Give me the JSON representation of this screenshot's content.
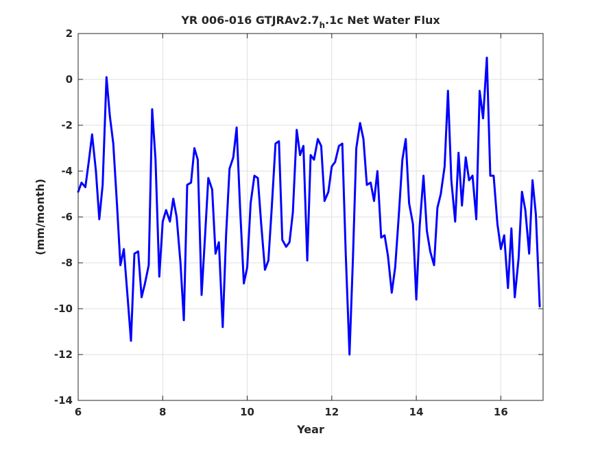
{
  "chart_data": {
    "type": "line",
    "title": "YR 006-016 GTJRAv2.7",
    "title_subscript": "h",
    "title_suffix": ".1c Net Water Flux",
    "xlabel": "Year",
    "ylabel": "(mm/month)",
    "xlim": [
      6,
      17
    ],
    "ylim": [
      -14,
      2
    ],
    "xticks": [
      6,
      8,
      10,
      12,
      14,
      16
    ],
    "yticks": [
      2,
      0,
      -2,
      -4,
      -6,
      -8,
      -10,
      -12,
      -14
    ],
    "grid": true,
    "colors": {
      "line": "#0000ff",
      "axes": "#262626",
      "grid": "#dfdfdf"
    },
    "series": [
      {
        "x": [
          6.0,
          6.08,
          6.17,
          6.25,
          6.33,
          6.42,
          6.5,
          6.58,
          6.67,
          6.75,
          6.83,
          6.92,
          7.0,
          7.08,
          7.17,
          7.25,
          7.33,
          7.42,
          7.5,
          7.58,
          7.67,
          7.75,
          7.83,
          7.92,
          8.0,
          8.08,
          8.17,
          8.25,
          8.33,
          8.42,
          8.5,
          8.58,
          8.67,
          8.75,
          8.83,
          8.92,
          9.0,
          9.08,
          9.17,
          9.25,
          9.33,
          9.42,
          9.5,
          9.58,
          9.67,
          9.75,
          9.83,
          9.92,
          10.0,
          10.08,
          10.17,
          10.25,
          10.33,
          10.42,
          10.5,
          10.58,
          10.67,
          10.75,
          10.83,
          10.92,
          11.0,
          11.08,
          11.17,
          11.25,
          11.33,
          11.42,
          11.5,
          11.58,
          11.67,
          11.75,
          11.83,
          11.92,
          12.0,
          12.08,
          12.17,
          12.25,
          12.33,
          12.42,
          12.5,
          12.58,
          12.67,
          12.75,
          12.83,
          12.92,
          13.0,
          13.08,
          13.17,
          13.25,
          13.33,
          13.42,
          13.5,
          13.58,
          13.67,
          13.75,
          13.83,
          13.92,
          14.0,
          14.08,
          14.17,
          14.25,
          14.33,
          14.42,
          14.5,
          14.58,
          14.67,
          14.75,
          14.83,
          14.92,
          15.0,
          15.08,
          15.17,
          15.25,
          15.33,
          15.42,
          15.5,
          15.58,
          15.67,
          15.75,
          15.83,
          15.92,
          16.0,
          16.08,
          16.17,
          16.25,
          16.33,
          16.42,
          16.5,
          16.58,
          16.67,
          16.75,
          16.83,
          16.92
        ],
        "values": [
          -4.9,
          -4.5,
          -4.7,
          -3.6,
          -2.4,
          -4.0,
          -6.1,
          -4.6,
          0.1,
          -1.6,
          -2.8,
          -5.5,
          -8.1,
          -7.4,
          -9.5,
          -11.4,
          -7.6,
          -7.5,
          -9.5,
          -8.9,
          -8.1,
          -1.3,
          -3.5,
          -8.6,
          -6.2,
          -5.7,
          -6.2,
          -5.2,
          -6.0,
          -8.0,
          -10.5,
          -4.6,
          -4.5,
          -3.0,
          -3.5,
          -9.4,
          -6.9,
          -4.3,
          -4.8,
          -7.6,
          -7.1,
          -10.8,
          -6.8,
          -3.9,
          -3.4,
          -2.1,
          -5.6,
          -8.9,
          -8.2,
          -5.4,
          -4.2,
          -4.3,
          -6.3,
          -8.3,
          -7.9,
          -5.6,
          -2.8,
          -2.7,
          -7.0,
          -7.3,
          -7.1,
          -5.8,
          -2.2,
          -3.3,
          -2.9,
          -7.9,
          -3.3,
          -3.5,
          -2.6,
          -2.9,
          -5.3,
          -4.9,
          -3.8,
          -3.6,
          -2.9,
          -2.8,
          -7.6,
          -12.0,
          -7.9,
          -3.0,
          -1.9,
          -2.6,
          -4.6,
          -4.5,
          -5.3,
          -4.0,
          -6.9,
          -6.8,
          -7.7,
          -9.3,
          -8.2,
          -6.1,
          -3.5,
          -2.6,
          -5.4,
          -6.3,
          -9.6,
          -6.4,
          -4.2,
          -6.6,
          -7.5,
          -8.1,
          -5.6,
          -5.0,
          -3.8,
          -0.5,
          -4.4,
          -6.2,
          -3.2,
          -5.5,
          -3.4,
          -4.4,
          -4.2,
          -6.1,
          -0.5,
          -1.7,
          0.95,
          -4.2,
          -4.2,
          -6.3,
          -7.4,
          -6.8,
          -9.1,
          -6.5,
          -9.5,
          -7.8,
          -4.9,
          -5.7,
          -7.6,
          -4.4,
          -5.9,
          -9.9
        ]
      }
    ]
  }
}
